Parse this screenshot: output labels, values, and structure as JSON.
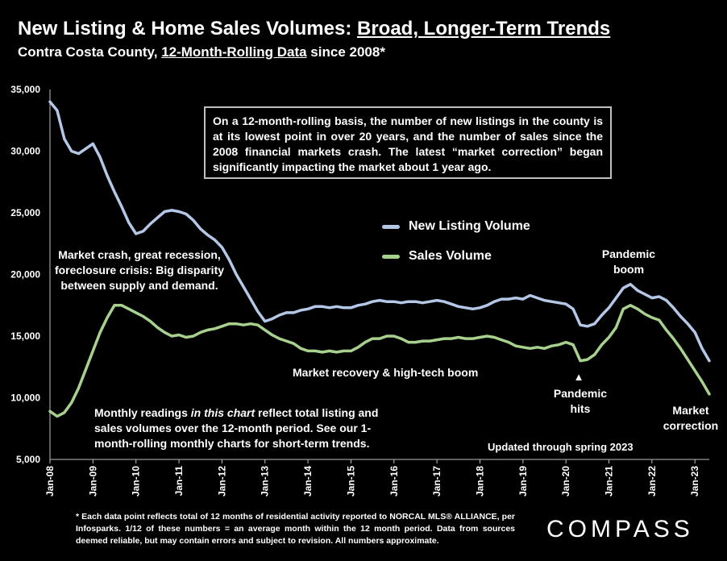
{
  "title_parts": {
    "lead": "New Listing & Home Sales Volumes: ",
    "underlined": "Broad, Longer-Term Trends"
  },
  "subtitle_parts": {
    "lead": "Contra Costa County, ",
    "underlined": "12-Month-Rolling Data",
    "tail": " since 2008*"
  },
  "note_box": "On a 12-month-rolling basis, the number of new listings in the county is at its lowest point in over 20 years, and the number of sales since the 2008 financial markets crash. The latest “market correction” began significantly impacting the market about 1 year ago.",
  "annotations": {
    "crash": "Market crash,  great recession, foreclosure crisis: Big disparity between supply and demand.",
    "recovery": "Market recovery & high-tech boom",
    "pandemic_boom_1": "Pandemic",
    "pandemic_boom_2": "boom",
    "pandemic_hits_1": "Pandemic",
    "pandemic_hits_2": "hits",
    "correction_1": "Market",
    "correction_2": "correction",
    "monthly_pre": "Monthly readings ",
    "monthly_italic": "in this chart",
    "monthly_post": " reflect total listing and sales volumes over the 12-month period. See our 1-month-rolling monthly charts for short-term trends.",
    "updated": "Updated through spring 2023",
    "marker": "▲"
  },
  "footnote": "* Each data point reflects total of 12 months of residential activity reported to NORCAL MLS® ALLIANCE, per Infosparks. 1/12 of these numbers = an average month within the 12 month period. Data from sources deemed reliable, but may contain errors and subject to revision. All numbers approximate.",
  "logo": "COMPASS",
  "colors": {
    "listing": "#b4c7e7",
    "sales": "#a9d18e",
    "background": "#000000",
    "text": "#ffffff"
  },
  "chart_data": {
    "type": "line",
    "title": "New Listing & Home Sales Volumes: Broad, Longer-Term Trends",
    "subtitle": "Contra Costa County, 12-Month-Rolling Data since 2008*",
    "xlabel": "",
    "ylabel": "",
    "ylim": [
      5000,
      35000
    ],
    "yticks": [
      5000,
      10000,
      15000,
      20000,
      25000,
      30000,
      35000
    ],
    "ytick_labels": [
      "5,000",
      "10,000",
      "15,000",
      "20,000",
      "25,000",
      "30,000",
      "35,000"
    ],
    "xlim": [
      "2008-01",
      "2023-05"
    ],
    "xtick_labels": [
      "Jan-08",
      "Jan-09",
      "Jan-10",
      "Jan-11",
      "Jan-12",
      "Jan-13",
      "Jan-14",
      "Jan-15",
      "Jan-16",
      "Jan-17",
      "Jan-18",
      "Jan-19",
      "Jan-20",
      "Jan-21",
      "Jan-22",
      "Jan-23"
    ],
    "grid": false,
    "legend_position": "center-right",
    "series": [
      {
        "name": "New Listing Volume",
        "points": [
          [
            "2008-01",
            34000
          ],
          [
            "2008-03",
            33300
          ],
          [
            "2008-05",
            31000
          ],
          [
            "2008-07",
            30000
          ],
          [
            "2008-09",
            29800
          ],
          [
            "2008-11",
            30200
          ],
          [
            "2009-01",
            30600
          ],
          [
            "2009-03",
            29500
          ],
          [
            "2009-05",
            28000
          ],
          [
            "2009-07",
            26700
          ],
          [
            "2009-09",
            25500
          ],
          [
            "2009-11",
            24200
          ],
          [
            "2010-01",
            23300
          ],
          [
            "2010-03",
            23500
          ],
          [
            "2010-05",
            24100
          ],
          [
            "2010-07",
            24600
          ],
          [
            "2010-09",
            25100
          ],
          [
            "2010-11",
            25200
          ],
          [
            "2011-01",
            25100
          ],
          [
            "2011-03",
            24900
          ],
          [
            "2011-05",
            24400
          ],
          [
            "2011-07",
            23700
          ],
          [
            "2011-09",
            23200
          ],
          [
            "2011-11",
            22800
          ],
          [
            "2012-01",
            22200
          ],
          [
            "2012-03",
            21200
          ],
          [
            "2012-05",
            20000
          ],
          [
            "2012-07",
            19000
          ],
          [
            "2012-09",
            18000
          ],
          [
            "2012-11",
            17000
          ],
          [
            "2013-01",
            16200
          ],
          [
            "2013-03",
            16400
          ],
          [
            "2013-05",
            16700
          ],
          [
            "2013-07",
            16900
          ],
          [
            "2013-09",
            16900
          ],
          [
            "2013-11",
            17100
          ],
          [
            "2014-01",
            17200
          ],
          [
            "2014-03",
            17400
          ],
          [
            "2014-05",
            17400
          ],
          [
            "2014-07",
            17300
          ],
          [
            "2014-09",
            17400
          ],
          [
            "2014-11",
            17300
          ],
          [
            "2015-01",
            17300
          ],
          [
            "2015-03",
            17500
          ],
          [
            "2015-05",
            17600
          ],
          [
            "2015-07",
            17800
          ],
          [
            "2015-09",
            17900
          ],
          [
            "2015-11",
            17800
          ],
          [
            "2016-01",
            17800
          ],
          [
            "2016-03",
            17700
          ],
          [
            "2016-05",
            17800
          ],
          [
            "2016-07",
            17800
          ],
          [
            "2016-09",
            17700
          ],
          [
            "2016-11",
            17800
          ],
          [
            "2017-01",
            17900
          ],
          [
            "2017-03",
            17800
          ],
          [
            "2017-05",
            17600
          ],
          [
            "2017-07",
            17400
          ],
          [
            "2017-09",
            17300
          ],
          [
            "2017-11",
            17200
          ],
          [
            "2018-01",
            17300
          ],
          [
            "2018-03",
            17500
          ],
          [
            "2018-05",
            17800
          ],
          [
            "2018-07",
            18000
          ],
          [
            "2018-09",
            18000
          ],
          [
            "2018-11",
            18100
          ],
          [
            "2019-01",
            18000
          ],
          [
            "2019-03",
            18300
          ],
          [
            "2019-05",
            18100
          ],
          [
            "2019-07",
            17900
          ],
          [
            "2019-09",
            17800
          ],
          [
            "2019-11",
            17700
          ],
          [
            "2020-01",
            17600
          ],
          [
            "2020-03",
            17200
          ],
          [
            "2020-05",
            15900
          ],
          [
            "2020-07",
            15800
          ],
          [
            "2020-09",
            16000
          ],
          [
            "2020-11",
            16700
          ],
          [
            "2021-01",
            17300
          ],
          [
            "2021-03",
            18100
          ],
          [
            "2021-05",
            18900
          ],
          [
            "2021-07",
            19200
          ],
          [
            "2021-09",
            18700
          ],
          [
            "2021-11",
            18400
          ],
          [
            "2022-01",
            18100
          ],
          [
            "2022-03",
            18200
          ],
          [
            "2022-05",
            17900
          ],
          [
            "2022-07",
            17300
          ],
          [
            "2022-09",
            16600
          ],
          [
            "2022-11",
            16000
          ],
          [
            "2023-01",
            15300
          ],
          [
            "2023-03",
            14000
          ],
          [
            "2023-05",
            13000
          ]
        ]
      },
      {
        "name": "Sales Volume",
        "points": [
          [
            "2008-01",
            8900
          ],
          [
            "2008-03",
            8500
          ],
          [
            "2008-05",
            8800
          ],
          [
            "2008-07",
            9600
          ],
          [
            "2008-09",
            10800
          ],
          [
            "2008-11",
            12300
          ],
          [
            "2009-01",
            13800
          ],
          [
            "2009-03",
            15300
          ],
          [
            "2009-05",
            16500
          ],
          [
            "2009-07",
            17500
          ],
          [
            "2009-09",
            17500
          ],
          [
            "2009-11",
            17200
          ],
          [
            "2010-01",
            16900
          ],
          [
            "2010-03",
            16600
          ],
          [
            "2010-05",
            16200
          ],
          [
            "2010-07",
            15700
          ],
          [
            "2010-09",
            15300
          ],
          [
            "2010-11",
            15000
          ],
          [
            "2011-01",
            15100
          ],
          [
            "2011-03",
            14900
          ],
          [
            "2011-05",
            15000
          ],
          [
            "2011-07",
            15300
          ],
          [
            "2011-09",
            15500
          ],
          [
            "2011-11",
            15600
          ],
          [
            "2012-01",
            15800
          ],
          [
            "2012-03",
            16000
          ],
          [
            "2012-05",
            16000
          ],
          [
            "2012-07",
            15900
          ],
          [
            "2012-09",
            16000
          ],
          [
            "2012-11",
            15900
          ],
          [
            "2013-01",
            15500
          ],
          [
            "2013-03",
            15100
          ],
          [
            "2013-05",
            14800
          ],
          [
            "2013-07",
            14600
          ],
          [
            "2013-09",
            14400
          ],
          [
            "2013-11",
            14000
          ],
          [
            "2014-01",
            13800
          ],
          [
            "2014-03",
            13800
          ],
          [
            "2014-05",
            13700
          ],
          [
            "2014-07",
            13800
          ],
          [
            "2014-09",
            13700
          ],
          [
            "2014-11",
            13800
          ],
          [
            "2015-01",
            13800
          ],
          [
            "2015-03",
            14100
          ],
          [
            "2015-05",
            14500
          ],
          [
            "2015-07",
            14800
          ],
          [
            "2015-09",
            14800
          ],
          [
            "2015-11",
            15000
          ],
          [
            "2016-01",
            15000
          ],
          [
            "2016-03",
            14800
          ],
          [
            "2016-05",
            14500
          ],
          [
            "2016-07",
            14500
          ],
          [
            "2016-09",
            14600
          ],
          [
            "2016-11",
            14600
          ],
          [
            "2017-01",
            14700
          ],
          [
            "2017-03",
            14800
          ],
          [
            "2017-05",
            14800
          ],
          [
            "2017-07",
            14900
          ],
          [
            "2017-09",
            14800
          ],
          [
            "2017-11",
            14800
          ],
          [
            "2018-01",
            14900
          ],
          [
            "2018-03",
            15000
          ],
          [
            "2018-05",
            14900
          ],
          [
            "2018-07",
            14700
          ],
          [
            "2018-09",
            14500
          ],
          [
            "2018-11",
            14200
          ],
          [
            "2019-01",
            14100
          ],
          [
            "2019-03",
            14000
          ],
          [
            "2019-05",
            14100
          ],
          [
            "2019-07",
            14000
          ],
          [
            "2019-09",
            14200
          ],
          [
            "2019-11",
            14300
          ],
          [
            "2020-01",
            14500
          ],
          [
            "2020-03",
            14300
          ],
          [
            "2020-05",
            13000
          ],
          [
            "2020-07",
            13100
          ],
          [
            "2020-09",
            13500
          ],
          [
            "2020-11",
            14300
          ],
          [
            "2021-01",
            14900
          ],
          [
            "2021-03",
            15700
          ],
          [
            "2021-05",
            17200
          ],
          [
            "2021-07",
            17500
          ],
          [
            "2021-09",
            17200
          ],
          [
            "2021-11",
            16800
          ],
          [
            "2022-01",
            16500
          ],
          [
            "2022-03",
            16300
          ],
          [
            "2022-05",
            15500
          ],
          [
            "2022-07",
            14800
          ],
          [
            "2022-09",
            14000
          ],
          [
            "2022-11",
            13100
          ],
          [
            "2023-01",
            12200
          ],
          [
            "2023-03",
            11300
          ],
          [
            "2023-05",
            10300
          ]
        ]
      }
    ]
  }
}
